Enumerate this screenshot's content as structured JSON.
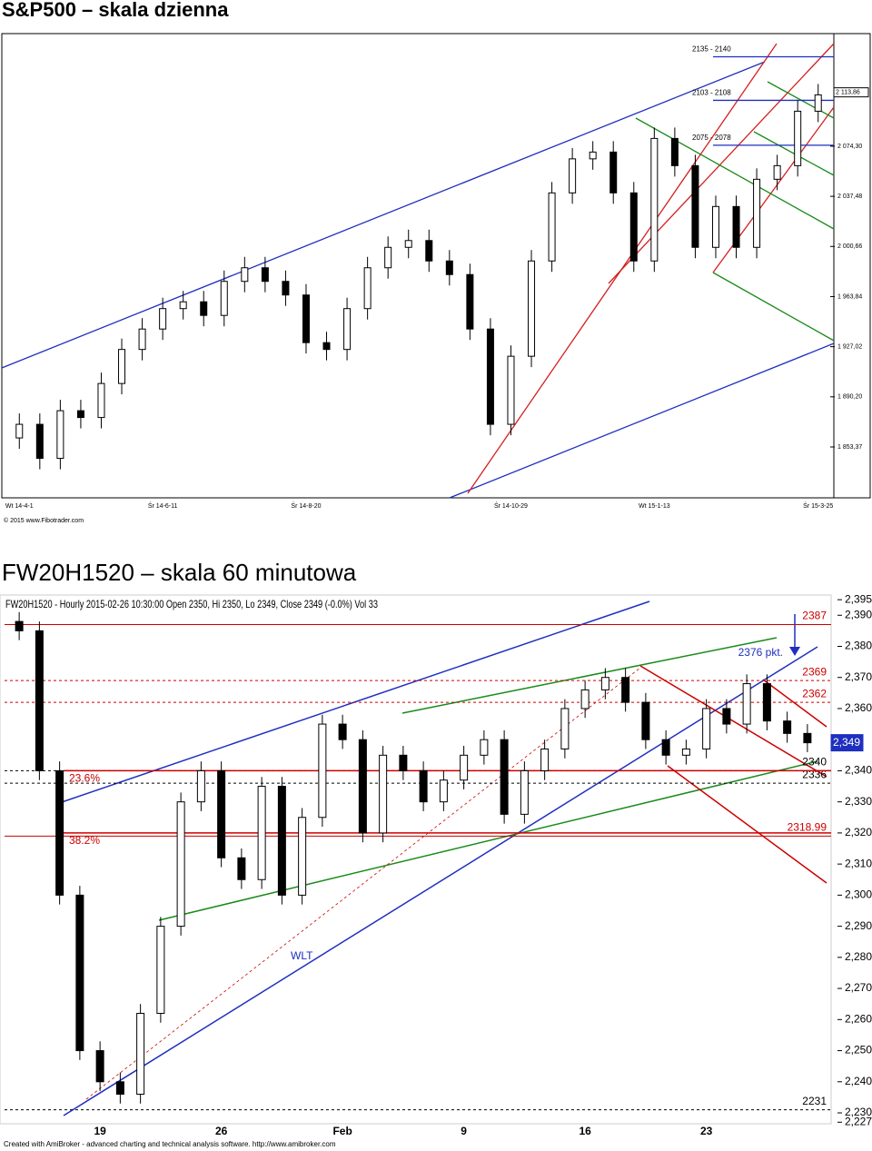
{
  "chart_data": [
    {
      "type": "candlestick",
      "title": "S&P500 – skala dzienna",
      "footer": "© 2015 www.Fibotrader.com",
      "categories": [
        "Wt 14-4-1",
        null,
        null,
        null,
        null,
        null,
        null,
        "Śr 14-6-11",
        null,
        null,
        null,
        null,
        null,
        null,
        "Śr 14-8-20",
        null,
        null,
        null,
        null,
        null,
        null,
        null,
        null,
        null,
        "Śr 14-10-29",
        null,
        null,
        null,
        null,
        null,
        null,
        "Wt 15-1-13",
        null,
        null,
        null,
        null,
        null,
        null,
        null,
        "Śr 15-3-25"
      ],
      "open": [
        1860,
        1870,
        1845,
        1880,
        1875,
        1900,
        1925,
        1940,
        1955,
        1960,
        1950,
        1975,
        1985,
        1975,
        1965,
        1930,
        1925,
        1955,
        1985,
        2000,
        2005,
        1990,
        1980,
        1940,
        1870,
        1920,
        1990,
        2040,
        2065,
        2070,
        2040,
        1990,
        2080,
        2060,
        2000,
        2030,
        2000,
        2050,
        2060,
        2100
      ],
      "high": [
        1878,
        1878,
        1888,
        1888,
        1908,
        1933,
        1948,
        1963,
        1968,
        1968,
        1983,
        1993,
        1993,
        1983,
        1973,
        1938,
        1963,
        1993,
        2008,
        2013,
        2013,
        1998,
        1988,
        1948,
        1928,
        1998,
        2048,
        2073,
        2078,
        2078,
        2048,
        2088,
        2088,
        2068,
        2038,
        2038,
        2058,
        2068,
        2108,
        2120
      ],
      "low": [
        1852,
        1837,
        1837,
        1867,
        1867,
        1892,
        1917,
        1932,
        1947,
        1942,
        1942,
        1967,
        1967,
        1957,
        1922,
        1917,
        1917,
        1947,
        1977,
        1992,
        1982,
        1972,
        1932,
        1862,
        1862,
        1912,
        1982,
        2032,
        2057,
        2032,
        1982,
        1982,
        2052,
        1992,
        1992,
        1992,
        1992,
        2042,
        2052,
        2092
      ],
      "close": [
        1870,
        1845,
        1880,
        1875,
        1900,
        1925,
        1940,
        1955,
        1960,
        1950,
        1975,
        1985,
        1975,
        1965,
        1930,
        1925,
        1955,
        1985,
        2000,
        2005,
        1990,
        1980,
        1940,
        1870,
        1920,
        1990,
        2040,
        2065,
        2070,
        2040,
        1990,
        2080,
        2060,
        2000,
        2030,
        2000,
        2050,
        2060,
        2100,
        2112
      ],
      "ylim": [
        1816,
        2157
      ],
      "yticks": [
        {
          "value": 2074.3,
          "label": "2 074,30"
        },
        {
          "value": 2037.48,
          "label": "2 037,48"
        },
        {
          "value": 2000.66,
          "label": "2 000,66"
        },
        {
          "value": 1963.84,
          "label": "1 963,84"
        },
        {
          "value": 1927.02,
          "label": "1 927,02"
        },
        {
          "value": 1890.2,
          "label": "1 890,20"
        },
        {
          "value": 1853.37,
          "label": "1 853,37"
        }
      ],
      "last_price": {
        "value": 2113.86,
        "label": "2 113,86"
      },
      "annotations": [
        {
          "text": "2135 - 2140",
          "value": 2140
        },
        {
          "text": "2103 - 2108",
          "value": 2108
        },
        {
          "text": "2075 - 2078",
          "value": 2075
        }
      ]
    },
    {
      "type": "candlestick",
      "title": "FW20H1520 – skala 60 minutowa",
      "subtitle": "FW20H1520 - Hourly 2015-02-26 10:30:00 Open 2350, Hi 2350, Lo 2349, Close 2349 (-0.0%) Vol 33",
      "footer": "Created with AmiBroker - advanced charting and technical analysis software. http://www.amibroker.com",
      "categories": [
        null,
        null,
        null,
        null,
        "19",
        null,
        null,
        null,
        null,
        null,
        "26",
        null,
        null,
        null,
        null,
        null,
        "Feb",
        null,
        null,
        null,
        null,
        null,
        "9",
        null,
        null,
        null,
        null,
        null,
        "16",
        null,
        null,
        null,
        null,
        null,
        "23",
        null,
        null,
        null,
        null,
        null
      ],
      "open": [
        2388,
        2385,
        2340,
        2300,
        2250,
        2240,
        2236,
        2262,
        2290,
        2330,
        2340,
        2312,
        2305,
        2335,
        2300,
        2325,
        2355,
        2350,
        2320,
        2345,
        2340,
        2330,
        2337,
        2345,
        2350,
        2326,
        2340,
        2347,
        2360,
        2366,
        2370,
        2362,
        2350,
        2345,
        2347,
        2360,
        2355,
        2368,
        2356,
        2352
      ],
      "high": [
        2391,
        2388,
        2343,
        2303,
        2253,
        2243,
        2265,
        2293,
        2333,
        2343,
        2343,
        2315,
        2338,
        2338,
        2328,
        2358,
        2358,
        2353,
        2348,
        2348,
        2343,
        2340,
        2348,
        2353,
        2353,
        2343,
        2350,
        2363,
        2369,
        2373,
        2373,
        2365,
        2353,
        2350,
        2363,
        2363,
        2371,
        2371,
        2359,
        2355
      ],
      "low": [
        2382,
        2337,
        2297,
        2247,
        2237,
        2233,
        2233,
        2259,
        2287,
        2327,
        2309,
        2302,
        2302,
        2297,
        2297,
        2322,
        2347,
        2317,
        2317,
        2337,
        2327,
        2327,
        2334,
        2342,
        2323,
        2323,
        2337,
        2344,
        2357,
        2363,
        2359,
        2347,
        2342,
        2342,
        2344,
        2352,
        2352,
        2353,
        2349,
        2346
      ],
      "close": [
        2385,
        2340,
        2300,
        2250,
        2240,
        2236,
        2262,
        2290,
        2330,
        2340,
        2312,
        2305,
        2335,
        2300,
        2325,
        2355,
        2350,
        2320,
        2345,
        2340,
        2330,
        2337,
        2345,
        2350,
        2326,
        2340,
        2347,
        2360,
        2366,
        2370,
        2362,
        2350,
        2345,
        2347,
        2360,
        2355,
        2368,
        2356,
        2352,
        2349
      ],
      "ylim": [
        2226.5,
        2396.5
      ],
      "yticks": [
        {
          "value": 2395,
          "label": "2,395"
        },
        {
          "value": 2390,
          "label": "2,390"
        },
        {
          "value": 2380,
          "label": "2,380"
        },
        {
          "value": 2370,
          "label": "2,370"
        },
        {
          "value": 2360,
          "label": "2,360"
        },
        {
          "value": 2340,
          "label": "2,340"
        },
        {
          "value": 2330,
          "label": "2,330"
        },
        {
          "value": 2320,
          "label": "2,320"
        },
        {
          "value": 2310,
          "label": "2,310"
        },
        {
          "value": 2300,
          "label": "2,300"
        },
        {
          "value": 2290,
          "label": "2,290"
        },
        {
          "value": 2280,
          "label": "2,280"
        },
        {
          "value": 2270,
          "label": "2,270"
        },
        {
          "value": 2260,
          "label": "2,260"
        },
        {
          "value": 2250,
          "label": "2,250"
        },
        {
          "value": 2240,
          "label": "2,240"
        },
        {
          "value": 2230,
          "label": "2,230"
        },
        {
          "value": 2227,
          "label": "2,227"
        }
      ],
      "last_price": {
        "value": 2349,
        "label": "2,349"
      },
      "levels": [
        {
          "value": 2387,
          "color": "#cc0000",
          "dashed": false
        },
        {
          "value": 2369,
          "color": "#cc0000",
          "dashed": true
        },
        {
          "value": 2362,
          "color": "#cc0000",
          "dashed": true
        },
        {
          "value": 2340,
          "color": "#000000",
          "dashed": true
        },
        {
          "value": 2336,
          "color": "#000000",
          "dashed": true
        },
        {
          "value": 2318.99,
          "color": "#cc0000",
          "dashed": false
        },
        {
          "value": 2231,
          "color": "#000000",
          "dashed": true
        }
      ],
      "fib_levels": [
        {
          "label": "23.6%",
          "value": 2340
        },
        {
          "label": "38.2%",
          "value": 2320
        }
      ],
      "annotations": [
        {
          "text": "2376 pkt."
        },
        {
          "text": "WLT"
        }
      ]
    }
  ]
}
